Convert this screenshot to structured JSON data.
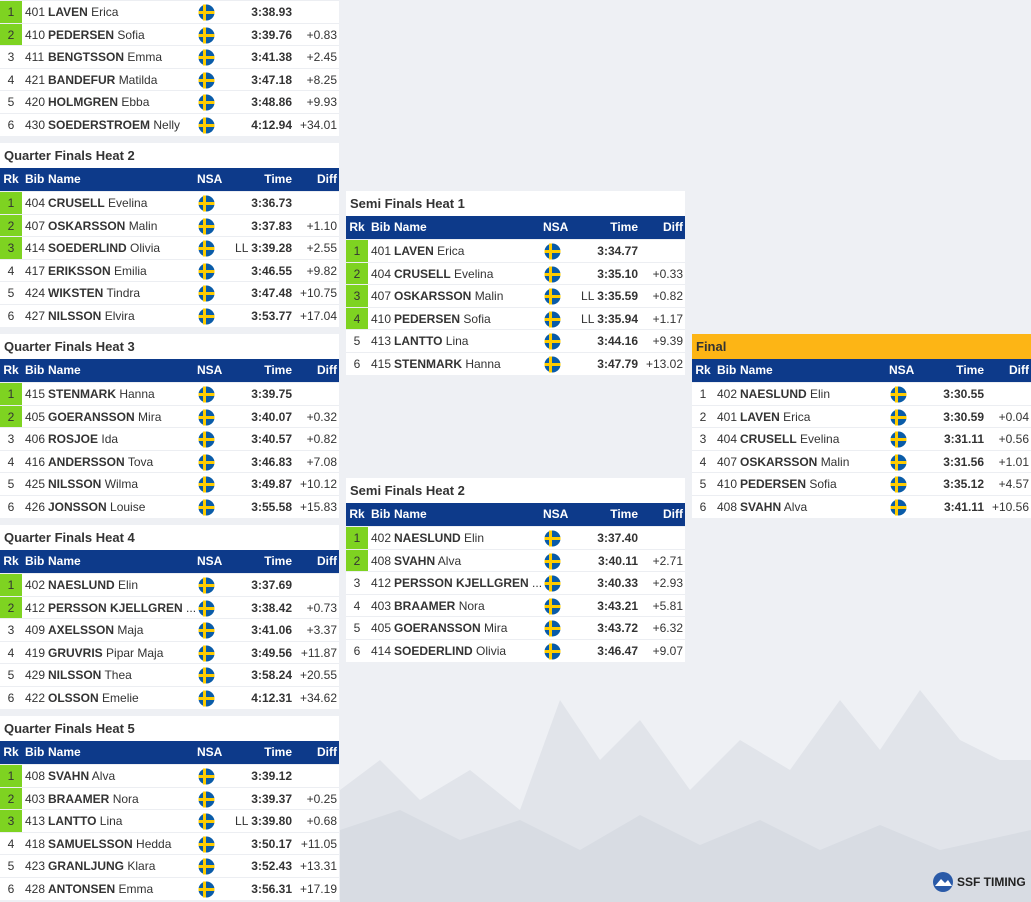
{
  "columns": {
    "rank": "Rk",
    "bib": "Bib",
    "name": "Name",
    "nsa": "NSA",
    "time": "Time",
    "diff": "Diff"
  },
  "logo": "SSF TIMING",
  "heats": [
    {
      "rows": [
        {
          "rank": 1,
          "bib": "401",
          "last": "LAVEN",
          "first": "Erica",
          "time": "3:38.93",
          "q": true
        },
        {
          "rank": 2,
          "bib": "410",
          "last": "PEDERSEN",
          "first": "Sofia",
          "time": "3:39.76",
          "diff": "+0.83",
          "q": true
        },
        {
          "rank": 3,
          "bib": "411",
          "last": "BENGTSSON",
          "first": "Emma",
          "time": "3:41.38",
          "diff": "+2.45"
        },
        {
          "rank": 4,
          "bib": "421",
          "last": "BANDEFUR",
          "first": "Matilda",
          "time": "3:47.18",
          "diff": "+8.25"
        },
        {
          "rank": 5,
          "bib": "420",
          "last": "HOLMGREN",
          "first": "Ebba",
          "time": "3:48.86",
          "diff": "+9.93"
        },
        {
          "rank": 6,
          "bib": "430",
          "last": "SOEDERSTROEM",
          "first": "Nelly",
          "time": "4:12.94",
          "diff": "+34.01"
        }
      ]
    },
    {
      "title": "Quarter Finals Heat 2",
      "rows": [
        {
          "rank": 1,
          "bib": "404",
          "last": "CRUSELL",
          "first": "Evelina",
          "time": "3:36.73",
          "q": true
        },
        {
          "rank": 2,
          "bib": "407",
          "last": "OSKARSSON",
          "first": "Malin",
          "time": "3:37.83",
          "diff": "+1.10",
          "q": true
        },
        {
          "rank": 3,
          "bib": "414",
          "last": "SOEDERLIND",
          "first": "Olivia",
          "note": "LL",
          "time": "3:39.28",
          "diff": "+2.55",
          "q": true
        },
        {
          "rank": 4,
          "bib": "417",
          "last": "ERIKSSON",
          "first": "Emilia",
          "time": "3:46.55",
          "diff": "+9.82"
        },
        {
          "rank": 5,
          "bib": "424",
          "last": "WIKSTEN",
          "first": "Tindra",
          "time": "3:47.48",
          "diff": "+10.75"
        },
        {
          "rank": 6,
          "bib": "427",
          "last": "NILSSON",
          "first": "Elvira",
          "time": "3:53.77",
          "diff": "+17.04"
        }
      ]
    },
    {
      "title": "Quarter Finals Heat 3",
      "rows": [
        {
          "rank": 1,
          "bib": "415",
          "last": "STENMARK",
          "first": "Hanna",
          "time": "3:39.75",
          "q": true
        },
        {
          "rank": 2,
          "bib": "405",
          "last": "GOERANSSON",
          "first": "Mira",
          "time": "3:40.07",
          "diff": "+0.32",
          "q": true
        },
        {
          "rank": 3,
          "bib": "406",
          "last": "ROSJOE",
          "first": "Ida",
          "time": "3:40.57",
          "diff": "+0.82"
        },
        {
          "rank": 4,
          "bib": "416",
          "last": "ANDERSSON",
          "first": "Tova",
          "time": "3:46.83",
          "diff": "+7.08"
        },
        {
          "rank": 5,
          "bib": "425",
          "last": "NILSSON",
          "first": "Wilma",
          "time": "3:49.87",
          "diff": "+10.12"
        },
        {
          "rank": 6,
          "bib": "426",
          "last": "JONSSON",
          "first": "Louise",
          "time": "3:55.58",
          "diff": "+15.83"
        }
      ]
    },
    {
      "title": "Quarter Finals Heat 4",
      "rows": [
        {
          "rank": 1,
          "bib": "402",
          "last": "NAESLUND",
          "first": "Elin",
          "time": "3:37.69",
          "q": true
        },
        {
          "rank": 2,
          "bib": "412",
          "last": "PERSSON KJELLGREN",
          "first": "...",
          "time": "3:38.42",
          "diff": "+0.73",
          "q": true
        },
        {
          "rank": 3,
          "bib": "409",
          "last": "AXELSSON",
          "first": "Maja",
          "time": "3:41.06",
          "diff": "+3.37"
        },
        {
          "rank": 4,
          "bib": "419",
          "last": "GRUVRIS",
          "first": "Pipar Maja",
          "time": "3:49.56",
          "diff": "+11.87"
        },
        {
          "rank": 5,
          "bib": "429",
          "last": "NILSSON",
          "first": "Thea",
          "time": "3:58.24",
          "diff": "+20.55"
        },
        {
          "rank": 6,
          "bib": "422",
          "last": "OLSSON",
          "first": "Emelie",
          "time": "4:12.31",
          "diff": "+34.62"
        }
      ]
    },
    {
      "title": "Quarter Finals Heat 5",
      "rows": [
        {
          "rank": 1,
          "bib": "408",
          "last": "SVAHN",
          "first": "Alva",
          "time": "3:39.12",
          "q": true
        },
        {
          "rank": 2,
          "bib": "403",
          "last": "BRAAMER",
          "first": "Nora",
          "time": "3:39.37",
          "diff": "+0.25",
          "q": true
        },
        {
          "rank": 3,
          "bib": "413",
          "last": "LANTTO",
          "first": "Lina",
          "note": "LL",
          "time": "3:39.80",
          "diff": "+0.68",
          "q": true
        },
        {
          "rank": 4,
          "bib": "418",
          "last": "SAMUELSSON",
          "first": "Hedda",
          "time": "3:50.17",
          "diff": "+11.05"
        },
        {
          "rank": 5,
          "bib": "423",
          "last": "GRANLJUNG",
          "first": "Klara",
          "time": "3:52.43",
          "diff": "+13.31"
        },
        {
          "rank": 6,
          "bib": "428",
          "last": "ANTONSEN",
          "first": "Emma",
          "time": "3:56.31",
          "diff": "+17.19"
        }
      ]
    },
    {
      "title": "Semi Finals Heat 1",
      "rows": [
        {
          "rank": 1,
          "bib": "401",
          "last": "LAVEN",
          "first": "Erica",
          "time": "3:34.77",
          "q": true
        },
        {
          "rank": 2,
          "bib": "404",
          "last": "CRUSELL",
          "first": "Evelina",
          "time": "3:35.10",
          "diff": "+0.33",
          "q": true
        },
        {
          "rank": 3,
          "bib": "407",
          "last": "OSKARSSON",
          "first": "Malin",
          "note": "LL",
          "time": "3:35.59",
          "diff": "+0.82",
          "q": true
        },
        {
          "rank": 4,
          "bib": "410",
          "last": "PEDERSEN",
          "first": "Sofia",
          "note": "LL",
          "time": "3:35.94",
          "diff": "+1.17",
          "q": true
        },
        {
          "rank": 5,
          "bib": "413",
          "last": "LANTTO",
          "first": "Lina",
          "time": "3:44.16",
          "diff": "+9.39"
        },
        {
          "rank": 6,
          "bib": "415",
          "last": "STENMARK",
          "first": "Hanna",
          "time": "3:47.79",
          "diff": "+13.02"
        }
      ]
    },
    {
      "title": "Semi Finals Heat 2",
      "rows": [
        {
          "rank": 1,
          "bib": "402",
          "last": "NAESLUND",
          "first": "Elin",
          "time": "3:37.40",
          "q": true
        },
        {
          "rank": 2,
          "bib": "408",
          "last": "SVAHN",
          "first": "Alva",
          "time": "3:40.11",
          "diff": "+2.71",
          "q": true
        },
        {
          "rank": 3,
          "bib": "412",
          "last": "PERSSON KJELLGREN",
          "first": "...",
          "time": "3:40.33",
          "diff": "+2.93"
        },
        {
          "rank": 4,
          "bib": "403",
          "last": "BRAAMER",
          "first": "Nora",
          "time": "3:43.21",
          "diff": "+5.81"
        },
        {
          "rank": 5,
          "bib": "405",
          "last": "GOERANSSON",
          "first": "Mira",
          "time": "3:43.72",
          "diff": "+6.32"
        },
        {
          "rank": 6,
          "bib": "414",
          "last": "SOEDERLIND",
          "first": "Olivia",
          "time": "3:46.47",
          "diff": "+9.07"
        }
      ]
    },
    {
      "title": "Final",
      "title_color": "#fdb515",
      "rows": [
        {
          "rank": 1,
          "bib": "402",
          "last": "NAESLUND",
          "first": "Elin",
          "time": "3:30.55"
        },
        {
          "rank": 2,
          "bib": "401",
          "last": "LAVEN",
          "first": "Erica",
          "time": "3:30.59",
          "diff": "+0.04"
        },
        {
          "rank": 3,
          "bib": "404",
          "last": "CRUSELL",
          "first": "Evelina",
          "time": "3:31.11",
          "diff": "+0.56"
        },
        {
          "rank": 4,
          "bib": "407",
          "last": "OSKARSSON",
          "first": "Malin",
          "time": "3:31.56",
          "diff": "+1.01"
        },
        {
          "rank": 5,
          "bib": "410",
          "last": "PEDERSEN",
          "first": "Sofia",
          "time": "3:35.12",
          "diff": "+4.57"
        },
        {
          "rank": 6,
          "bib": "408",
          "last": "SVAHN",
          "first": "Alva",
          "time": "3:41.11",
          "diff": "+10.56"
        }
      ]
    }
  ]
}
